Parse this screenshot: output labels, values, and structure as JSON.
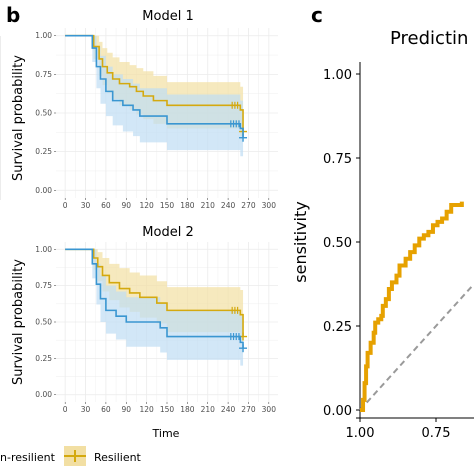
{
  "panel_letters": {
    "b": "b",
    "c": "c"
  },
  "legend": {
    "nonresilient": "n-resilient",
    "resilient": "Resilient"
  },
  "colors": {
    "resilient": "#D4A90F",
    "resilient_fill": "#F2DFA3",
    "nonresilient": "#3A96D1",
    "nonresilient_fill": "#BFDDF3",
    "roc": "#E6A100",
    "diag": "#9a9a9a",
    "panel_bg": "#ffffff",
    "grid": "#ebebeb"
  },
  "chart_data": [
    {
      "type": "line",
      "title": "Model 1",
      "xlabel": "",
      "ylabel": "Survival probability",
      "xlim": [
        0,
        300
      ],
      "ylim": [
        0,
        1
      ],
      "xticks": [
        "0",
        "30",
        "60",
        "90",
        "120",
        "150",
        "180",
        "210",
        "240",
        "270",
        "300"
      ],
      "yticks": [
        "0.00",
        "0.25",
        "0.50",
        "0.75",
        "1.00"
      ],
      "grid": true,
      "series": [
        {
          "name": "Resilient",
          "steps": [
            [
              0,
              1.0
            ],
            [
              38,
              1.0
            ],
            [
              42,
              0.93
            ],
            [
              50,
              0.85
            ],
            [
              55,
              0.8
            ],
            [
              62,
              0.76
            ],
            [
              70,
              0.72
            ],
            [
              80,
              0.69
            ],
            [
              95,
              0.67
            ],
            [
              105,
              0.64
            ],
            [
              115,
              0.61
            ],
            [
              130,
              0.58
            ],
            [
              150,
              0.55
            ],
            [
              240,
              0.55
            ],
            [
              258,
              0.52
            ],
            [
              262,
              0.38
            ]
          ],
          "lower": [
            [
              0,
              1.0
            ],
            [
              38,
              1.0
            ],
            [
              42,
              0.85
            ],
            [
              50,
              0.74
            ],
            [
              55,
              0.68
            ],
            [
              62,
              0.63
            ],
            [
              70,
              0.59
            ],
            [
              80,
              0.55
            ],
            [
              95,
              0.52
            ],
            [
              105,
              0.49
            ],
            [
              115,
              0.46
            ],
            [
              130,
              0.43
            ],
            [
              150,
              0.4
            ],
            [
              240,
              0.4
            ],
            [
              258,
              0.35
            ],
            [
              262,
              0.2
            ]
          ],
          "upper": [
            [
              0,
              1.0
            ],
            [
              38,
              1.0
            ],
            [
              42,
              1.0
            ],
            [
              50,
              0.96
            ],
            [
              55,
              0.92
            ],
            [
              62,
              0.89
            ],
            [
              70,
              0.86
            ],
            [
              80,
              0.83
            ],
            [
              95,
              0.81
            ],
            [
              105,
              0.79
            ],
            [
              115,
              0.77
            ],
            [
              130,
              0.74
            ],
            [
              150,
              0.7
            ],
            [
              240,
              0.7
            ],
            [
              258,
              0.67
            ],
            [
              262,
              0.53
            ]
          ],
          "censor": [
            [
              246,
              0.55
            ],
            [
              250,
              0.55
            ],
            [
              254,
              0.55
            ]
          ]
        },
        {
          "name": "",
          "steps": [
            [
              0,
              1.0
            ],
            [
              36,
              1.0
            ],
            [
              40,
              0.92
            ],
            [
              46,
              0.8
            ],
            [
              52,
              0.72
            ],
            [
              60,
              0.64
            ],
            [
              70,
              0.58
            ],
            [
              85,
              0.55
            ],
            [
              100,
              0.52
            ],
            [
              110,
              0.48
            ],
            [
              140,
              0.48
            ],
            [
              150,
              0.43
            ],
            [
              240,
              0.43
            ],
            [
              258,
              0.4
            ],
            [
              262,
              0.34
            ]
          ],
          "lower": [
            [
              0,
              1.0
            ],
            [
              36,
              1.0
            ],
            [
              40,
              0.83
            ],
            [
              46,
              0.66
            ],
            [
              52,
              0.56
            ],
            [
              60,
              0.48
            ],
            [
              70,
              0.42
            ],
            [
              85,
              0.38
            ],
            [
              100,
              0.35
            ],
            [
              110,
              0.31
            ],
            [
              140,
              0.31
            ],
            [
              150,
              0.26
            ],
            [
              240,
              0.26
            ],
            [
              258,
              0.22
            ],
            [
              262,
              0.16
            ]
          ],
          "upper": [
            [
              0,
              1.0
            ],
            [
              36,
              1.0
            ],
            [
              40,
              1.0
            ],
            [
              46,
              0.93
            ],
            [
              52,
              0.87
            ],
            [
              60,
              0.8
            ],
            [
              70,
              0.75
            ],
            [
              85,
              0.72
            ],
            [
              100,
              0.69
            ],
            [
              110,
              0.66
            ],
            [
              140,
              0.66
            ],
            [
              150,
              0.62
            ],
            [
              240,
              0.62
            ],
            [
              258,
              0.58
            ],
            [
              262,
              0.52
            ]
          ],
          "censor": [
            [
              244,
              0.43
            ],
            [
              248,
              0.43
            ],
            [
              252,
              0.43
            ],
            [
              256,
              0.43
            ]
          ]
        }
      ]
    },
    {
      "type": "line",
      "title": "Model 2",
      "xlabel": "Time",
      "ylabel": "Survival probability",
      "xlim": [
        0,
        300
      ],
      "ylim": [
        0,
        1
      ],
      "xticks": [
        "0",
        "30",
        "60",
        "90",
        "120",
        "150",
        "180",
        "210",
        "240",
        "270",
        "300"
      ],
      "yticks": [
        "0.00",
        "0.25",
        "0.50",
        "0.75",
        "1.00"
      ],
      "grid": true,
      "series": [
        {
          "name": "Resilient",
          "steps": [
            [
              0,
              1.0
            ],
            [
              38,
              1.0
            ],
            [
              42,
              0.94
            ],
            [
              48,
              0.88
            ],
            [
              55,
              0.82
            ],
            [
              65,
              0.77
            ],
            [
              80,
              0.73
            ],
            [
              95,
              0.7
            ],
            [
              110,
              0.67
            ],
            [
              135,
              0.63
            ],
            [
              150,
              0.58
            ],
            [
              240,
              0.58
            ],
            [
              258,
              0.55
            ],
            [
              262,
              0.4
            ]
          ],
          "lower": [
            [
              0,
              1.0
            ],
            [
              38,
              1.0
            ],
            [
              42,
              0.86
            ],
            [
              48,
              0.78
            ],
            [
              55,
              0.71
            ],
            [
              65,
              0.65
            ],
            [
              80,
              0.6
            ],
            [
              95,
              0.57
            ],
            [
              110,
              0.53
            ],
            [
              135,
              0.49
            ],
            [
              150,
              0.43
            ],
            [
              240,
              0.43
            ],
            [
              258,
              0.39
            ],
            [
              262,
              0.22
            ]
          ],
          "upper": [
            [
              0,
              1.0
            ],
            [
              38,
              1.0
            ],
            [
              42,
              1.0
            ],
            [
              48,
              0.98
            ],
            [
              55,
              0.94
            ],
            [
              65,
              0.9
            ],
            [
              80,
              0.87
            ],
            [
              95,
              0.84
            ],
            [
              110,
              0.82
            ],
            [
              135,
              0.78
            ],
            [
              150,
              0.74
            ],
            [
              240,
              0.74
            ],
            [
              258,
              0.72
            ],
            [
              262,
              0.58
            ]
          ],
          "censor": [
            [
              246,
              0.58
            ],
            [
              250,
              0.58
            ],
            [
              254,
              0.58
            ]
          ]
        },
        {
          "name": "",
          "steps": [
            [
              0,
              1.0
            ],
            [
              36,
              1.0
            ],
            [
              40,
              0.9
            ],
            [
              46,
              0.76
            ],
            [
              52,
              0.66
            ],
            [
              60,
              0.58
            ],
            [
              75,
              0.54
            ],
            [
              90,
              0.5
            ],
            [
              130,
              0.5
            ],
            [
              140,
              0.46
            ],
            [
              150,
              0.4
            ],
            [
              240,
              0.4
            ],
            [
              258,
              0.36
            ],
            [
              262,
              0.32
            ]
          ],
          "lower": [
            [
              0,
              1.0
            ],
            [
              36,
              1.0
            ],
            [
              40,
              0.8
            ],
            [
              46,
              0.62
            ],
            [
              52,
              0.5
            ],
            [
              60,
              0.42
            ],
            [
              75,
              0.38
            ],
            [
              90,
              0.33
            ],
            [
              130,
              0.33
            ],
            [
              140,
              0.29
            ],
            [
              150,
              0.24
            ],
            [
              240,
              0.24
            ],
            [
              258,
              0.2
            ],
            [
              262,
              0.16
            ]
          ],
          "upper": [
            [
              0,
              1.0
            ],
            [
              36,
              1.0
            ],
            [
              40,
              1.0
            ],
            [
              46,
              0.9
            ],
            [
              52,
              0.82
            ],
            [
              60,
              0.75
            ],
            [
              75,
              0.71
            ],
            [
              90,
              0.67
            ],
            [
              130,
              0.67
            ],
            [
              140,
              0.63
            ],
            [
              150,
              0.58
            ],
            [
              240,
              0.58
            ],
            [
              258,
              0.54
            ],
            [
              262,
              0.5
            ]
          ],
          "censor": [
            [
              244,
              0.4
            ],
            [
              248,
              0.4
            ],
            [
              252,
              0.4
            ],
            [
              256,
              0.4
            ]
          ]
        }
      ]
    },
    {
      "type": "line",
      "title": "Predictin",
      "xlabel": "",
      "ylabel": "sensitivity",
      "xlim": [
        1.0,
        0.625
      ],
      "ylim": [
        0,
        1
      ],
      "xticks": [
        "1.00",
        "0.75"
      ],
      "yticks": [
        "0.00",
        "0.25",
        "0.50",
        "0.75",
        "1.00"
      ],
      "grid": false,
      "series": [
        {
          "name": "",
          "points": [
            [
              1.0,
              0.0
            ],
            [
              0.99,
              0.03
            ],
            [
              0.985,
              0.08
            ],
            [
              0.98,
              0.13
            ],
            [
              0.975,
              0.17
            ],
            [
              0.965,
              0.2
            ],
            [
              0.955,
              0.23
            ],
            [
              0.95,
              0.26
            ],
            [
              0.94,
              0.27
            ],
            [
              0.93,
              0.28
            ],
            [
              0.925,
              0.31
            ],
            [
              0.915,
              0.33
            ],
            [
              0.905,
              0.36
            ],
            [
              0.895,
              0.38
            ],
            [
              0.88,
              0.4
            ],
            [
              0.87,
              0.43
            ],
            [
              0.85,
              0.45
            ],
            [
              0.835,
              0.47
            ],
            [
              0.82,
              0.49
            ],
            [
              0.805,
              0.51
            ],
            [
              0.79,
              0.52
            ],
            [
              0.775,
              0.53
            ],
            [
              0.76,
              0.55
            ],
            [
              0.745,
              0.56
            ],
            [
              0.73,
              0.57
            ],
            [
              0.715,
              0.59
            ],
            [
              0.7,
              0.61
            ],
            [
              0.68,
              0.61
            ],
            [
              0.665,
              0.62
            ]
          ]
        },
        {
          "name": "",
          "dashed": true,
          "points": [
            [
              1.0,
              0.0
            ],
            [
              0.625,
              0.375
            ]
          ]
        }
      ]
    }
  ]
}
